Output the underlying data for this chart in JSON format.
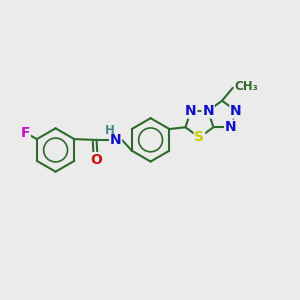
{
  "bg": "#ebebeb",
  "bond_color": "#2d6b2d",
  "colors": {
    "C": "#2d6b2d",
    "N": "#1010cc",
    "O": "#cc1010",
    "S": "#cccc00",
    "F": "#cc10cc",
    "H": "#4a8888"
  },
  "lw": 1.5,
  "fs": 10,
  "sfs": 8.5,
  "ring_r": 0.62,
  "pent_r": 0.42,
  "figsize": [
    3.0,
    3.0
  ],
  "dpi": 100,
  "xlim": [
    0.0,
    8.5
  ],
  "ylim": [
    2.5,
    6.5
  ]
}
